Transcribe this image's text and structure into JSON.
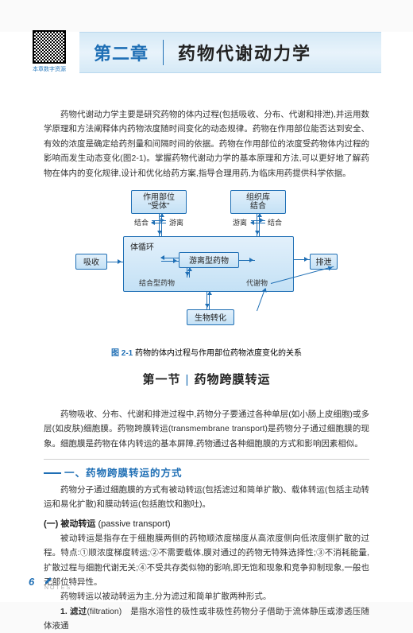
{
  "qr_label": "本章数字资源",
  "chapter_num": "第二章",
  "chapter_title": "药物代谢动力学",
  "intro": "药物代谢动力学主要是研究药物的体内过程(包括吸收、分布、代谢和排泄),并运用数学原理和方法阐释体内药物浓度随时间变化的动态规律。药物在作用部位能否达到安全、有效的浓度是确定给药剂量和间隔时间的依据。药物在作用部位的浓度受药物体内过程的影响而发生动态变化(图2-1)。掌握药物代谢动力学的基本原理和方法,可以更好地了解药物在体内的变化规律,设计和优化给药方案,指导合理用药,为临床用药提供科学依据。",
  "diagram": {
    "top_left": "作用部位\n\"受体\"",
    "top_right": "组织库\n结合",
    "lbl_bind_l": "结合",
    "lbl_free_l": "游离",
    "lbl_free_r": "游离",
    "lbl_bind_r": "结合",
    "circ": "体循环",
    "center": "游离型药物",
    "absorb": "吸收",
    "excrete": "排泄",
    "bound_drug": "结合型药物",
    "metabolite": "代谢物",
    "biotrans": "生物转化"
  },
  "fig_num": "图 2-1",
  "fig_title": "药物的体内过程与作用部位药物浓度变化的关系",
  "section_num": "第一节",
  "section_title": "药物跨膜转运",
  "para2": "药物吸收、分布、代谢和排泄过程中,药物分子要通过各种单层(如小肠上皮细胞)或多层(如皮肤)细胞膜。药物跨膜转运(transmembrane transport)是药物分子通过细胞膜的现象。细胞膜是药物在体内转运的基本屏障,药物通过各种细胞膜的方式和影响因素相似。",
  "subheading1": "一、药物跨膜转运的方式",
  "para3": "药物分子通过细胞膜的方式有被动转运(包括滤过和简单扩散)、载体转运(包括主动转运和易化扩散)和膜动转运(包括胞饮和胞吐)。",
  "subsub1_cn": "(一) 被动转运",
  "subsub1_en": "(passive transport)",
  "para4": "被动转运是指存在于细胞膜两侧的药物顺浓度梯度从高浓度侧向低浓度侧扩散的过程。特点:①顺浓度梯度转运;②不需要载体,膜对通过的药物无特殊选择性;③不消耗能量,扩散过程与细胞代谢无关;④不受共存类似物的影响,即无饱和现象和竞争抑制现象,一般也无部位特异性。",
  "para5": "药物转运以被动转运为主,分为滤过和简单扩散两种形式。",
  "item1_num": "1. 滤过",
  "item1_en": "(filtration)",
  "item1_txt": "是指水溶性的极性或非极性药物分子借助于流体静压或渗透压随体液通",
  "page_num": "6",
  "notes": "NOTES"
}
